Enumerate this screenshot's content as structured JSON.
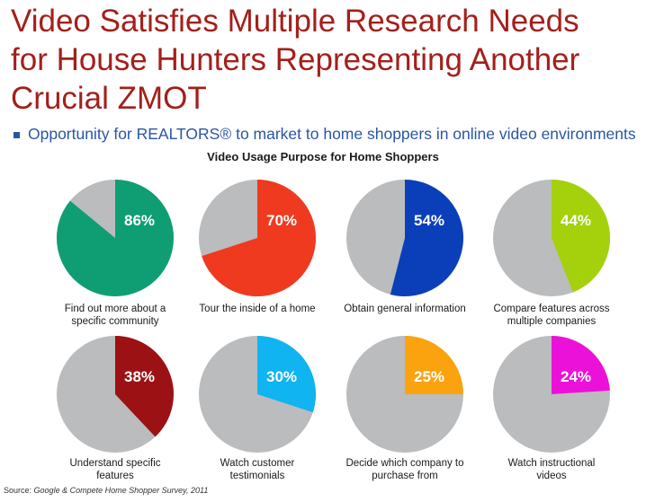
{
  "title_lines": [
    "Video Satisfies Multiple Research Needs",
    "for House Hunters Representing Another",
    "Crucial ZMOT"
  ],
  "bullet": "Opportunity for REALTORS® to market to home shoppers in online video environments",
  "source_label": "Source:",
  "source_text": "Google & Compete Home Shopper Survey, 2011",
  "colors": {
    "title": "#a41f1b",
    "bullet": "#2a55a6",
    "remainder": "#babcbe"
  },
  "chart_data": {
    "type": "pie",
    "title": "Video Usage Purpose for Home Shoppers",
    "pies": [
      {
        "label": [
          "Find out more about a",
          "specific community"
        ],
        "value": 86,
        "display": "86%",
        "color": "#0f9e74"
      },
      {
        "label": [
          "Tour the inside of a home"
        ],
        "value": 70,
        "display": "70%",
        "color": "#ef3a1f"
      },
      {
        "label": [
          "Obtain general information"
        ],
        "value": 54,
        "display": "54%",
        "color": "#0b3fba"
      },
      {
        "label": [
          "Compare features across",
          "multiple companies"
        ],
        "value": 44,
        "display": "44%",
        "color": "#a4d10b"
      },
      {
        "label": [
          "Understand specific",
          "features"
        ],
        "value": 38,
        "display": "38%",
        "color": "#9c1214"
      },
      {
        "label": [
          "Watch customer",
          "testimonials"
        ],
        "value": 30,
        "display": "30%",
        "color": "#10b4f0"
      },
      {
        "label": [
          "Decide which company to",
          "purchase from"
        ],
        "value": 25,
        "display": "25%",
        "color": "#fba30f"
      },
      {
        "label": [
          "Watch instructional",
          "videos"
        ],
        "value": 24,
        "display": "24%",
        "color": "#ec11d8"
      }
    ]
  }
}
